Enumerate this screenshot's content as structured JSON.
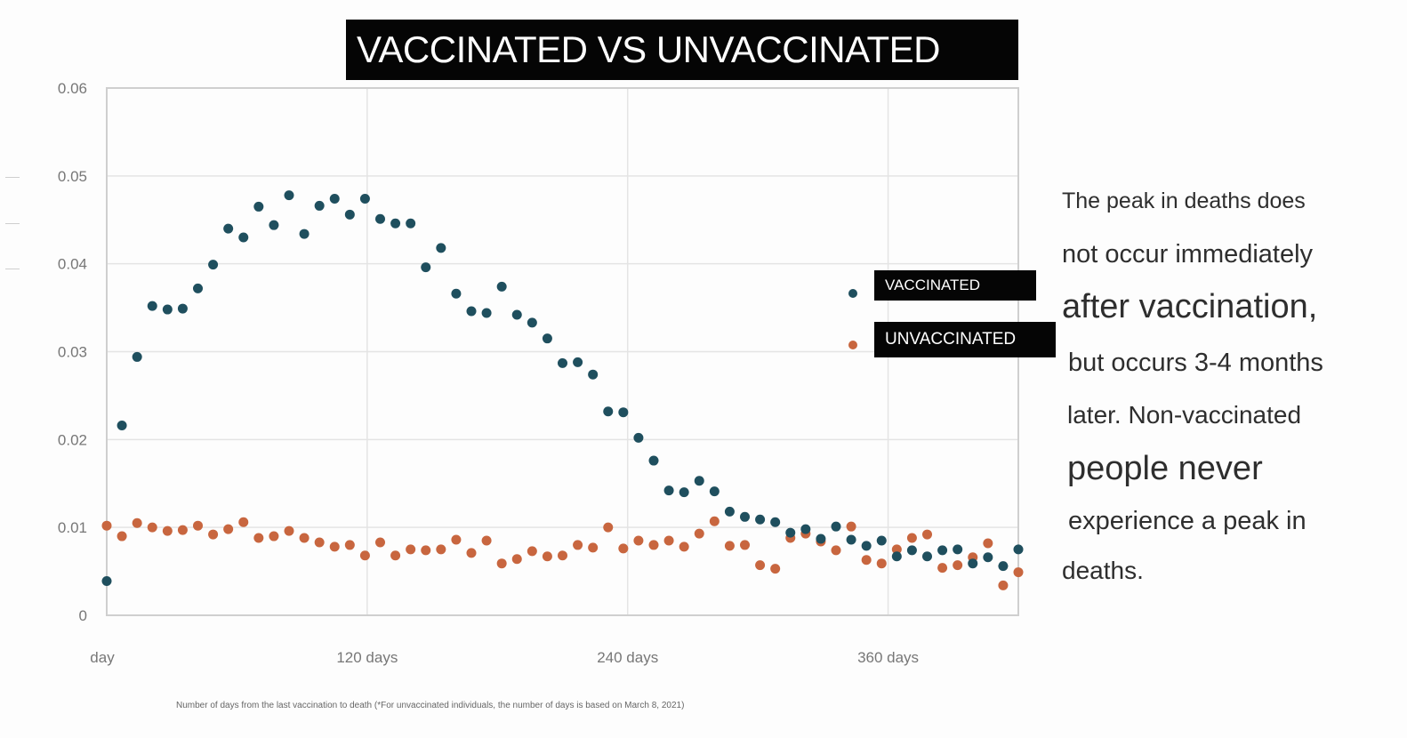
{
  "title": "VACCINATED VS UNVACCINATED",
  "legend": {
    "vaccinated": "VACCINATED",
    "unvaccinated": "UNVACCINATED"
  },
  "colors": {
    "vaccinated": "#1f4f5e",
    "unvaccinated": "#c8663f",
    "grid": "#e4e4e4",
    "axis": "#cfcfcf"
  },
  "side_text": [
    "The peak in deaths does",
    "not occur immediately",
    "after vaccination,",
    "but occurs 3-4 months",
    "later. Non-vaccinated",
    "people never",
    "experience a peak in",
    "deaths."
  ],
  "footnote": "Number of days from the last vaccination to death (*For unvaccinated individuals, the number of days is based on March 8, 2021)",
  "chart_data": {
    "type": "scatter",
    "title": "VACCINATED VS UNVACCINATED",
    "xlabel": "Number of days from the last vaccination to death (*For unvaccinated individuals, the number of days is based on March 8, 2021)",
    "ylabel": "",
    "xlim": [
      0,
      420
    ],
    "ylim": [
      0,
      0.06
    ],
    "grid": true,
    "legend_position": "right",
    "x_ticks": [
      {
        "value": 0,
        "label": "day"
      },
      {
        "value": 120,
        "label": "120 days"
      },
      {
        "value": 240,
        "label": "240 days"
      },
      {
        "value": 360,
        "label": "360 days"
      }
    ],
    "y_ticks": [
      {
        "value": 0,
        "label": "0"
      },
      {
        "value": 0.01,
        "label": "0.01"
      },
      {
        "value": 0.02,
        "label": "0.02"
      },
      {
        "value": 0.03,
        "label": "0.03"
      },
      {
        "value": 0.04,
        "label": "0.04"
      },
      {
        "value": 0.05,
        "label": "0.05"
      },
      {
        "value": 0.06,
        "label": "0.06"
      }
    ],
    "series": [
      {
        "name": "VACCINATED",
        "x": [
          0,
          7,
          14,
          21,
          28,
          35,
          42,
          49,
          56,
          63,
          70,
          77,
          84,
          91,
          98,
          105,
          112,
          119,
          126,
          133,
          140,
          147,
          154,
          161,
          168,
          175,
          182,
          189,
          196,
          203,
          210,
          217,
          224,
          231,
          238,
          245,
          252,
          259,
          266,
          273,
          280,
          287,
          294,
          301,
          308,
          315,
          322,
          329,
          336,
          343,
          350,
          357,
          364,
          371,
          378,
          385,
          392,
          399,
          406,
          413,
          420
        ],
        "y": [
          0.0039,
          0.0216,
          0.0294,
          0.0352,
          0.0348,
          0.0349,
          0.0372,
          0.0399,
          0.044,
          0.043,
          0.0465,
          0.0444,
          0.0478,
          0.0434,
          0.0466,
          0.0474,
          0.0456,
          0.0474,
          0.0451,
          0.0446,
          0.0446,
          0.0396,
          0.0418,
          0.0366,
          0.0346,
          0.0344,
          0.0374,
          0.0342,
          0.0333,
          0.0315,
          0.0287,
          0.0288,
          0.0274,
          0.0232,
          0.0231,
          0.0202,
          0.0176,
          0.0142,
          0.014,
          0.0153,
          0.0141,
          0.0118,
          0.0112,
          0.0109,
          0.0106,
          0.0094,
          0.0098,
          0.0087,
          0.0101,
          0.0086,
          0.0079,
          0.0085,
          0.0067,
          0.0074,
          0.0067,
          0.0074,
          0.0075,
          0.0059,
          0.0066,
          0.0056,
          0.0075
        ]
      },
      {
        "name": "UNVACCINATED",
        "x": [
          0,
          7,
          14,
          21,
          28,
          35,
          42,
          49,
          56,
          63,
          70,
          77,
          84,
          91,
          98,
          105,
          112,
          119,
          126,
          133,
          140,
          147,
          154,
          161,
          168,
          175,
          182,
          189,
          196,
          203,
          210,
          217,
          224,
          231,
          238,
          245,
          252,
          259,
          266,
          273,
          280,
          287,
          294,
          301,
          308,
          315,
          322,
          329,
          336,
          343,
          350,
          357,
          364,
          371,
          378,
          385,
          392,
          399,
          406,
          413,
          420
        ],
        "y": [
          0.0102,
          0.009,
          0.0105,
          0.01,
          0.0096,
          0.0097,
          0.0102,
          0.0092,
          0.0098,
          0.0106,
          0.0088,
          0.009,
          0.0096,
          0.0088,
          0.0083,
          0.0078,
          0.008,
          0.0068,
          0.0083,
          0.0068,
          0.0075,
          0.0074,
          0.0075,
          0.0086,
          0.0071,
          0.0085,
          0.0059,
          0.0064,
          0.0073,
          0.0067,
          0.0068,
          0.008,
          0.0077,
          0.01,
          0.0076,
          0.0085,
          0.008,
          0.0085,
          0.0078,
          0.0093,
          0.0107,
          0.0079,
          0.008,
          0.0057,
          0.0053,
          0.0088,
          0.0093,
          0.0084,
          0.0074,
          0.0101,
          0.0063,
          0.0059,
          0.0075,
          0.0088,
          0.0092,
          0.0054,
          0.0057,
          0.0066,
          0.0082,
          0.0034,
          0.0049
        ]
      }
    ]
  }
}
